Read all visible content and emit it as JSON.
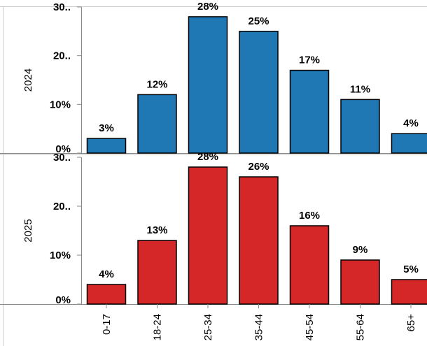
{
  "chart_data": {
    "type": "bar",
    "categories": [
      "0-17",
      "18-24",
      "25-34",
      "35-44",
      "45-54",
      "55-64",
      "65+"
    ],
    "ylim": [
      0,
      30
    ],
    "y_ticks": [
      0,
      10,
      20,
      30
    ],
    "y_tick_labels": [
      "0%",
      "10%",
      "20..",
      "30.."
    ],
    "grid": false,
    "series": [
      {
        "name": "2024",
        "color": "#1f77b4",
        "values": [
          3,
          12,
          28,
          25,
          17,
          11,
          4
        ],
        "labels": [
          "3%",
          "12%",
          "28%",
          "25%",
          "17%",
          "11%",
          "4%"
        ]
      },
      {
        "name": "2025",
        "color": "#d62728",
        "values": [
          4,
          13,
          28,
          26,
          16,
          9,
          5
        ],
        "labels": [
          "4%",
          "13%",
          "28%",
          "26%",
          "16%",
          "9%",
          "5%"
        ]
      }
    ]
  }
}
